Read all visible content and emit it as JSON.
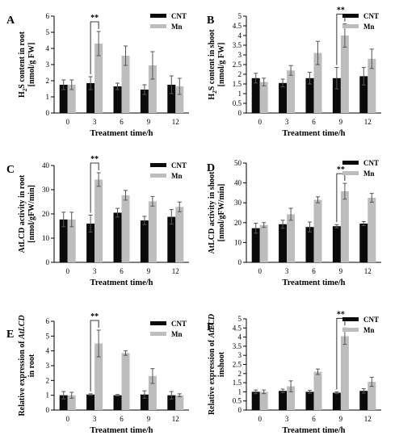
{
  "figure": {
    "shared": {
      "xlabel": "Treatment time/h",
      "legend": [
        "CNT",
        "Mn"
      ],
      "colors": {
        "CNT": "#0a0a0a",
        "Mn": "#bdbdbd",
        "axis": "#000000"
      },
      "significance": "**"
    }
  },
  "chart_data": [
    {
      "panel": "A",
      "type": "bar",
      "ylabel_parts": [
        "H",
        "2",
        "S content in root",
        "[nmol/g FW]"
      ],
      "xlabel": "Treatment time/h",
      "categories": [
        "0",
        "3",
        "6",
        "9",
        "12"
      ],
      "ylim": [
        0,
        6
      ],
      "yticks": [
        0,
        1,
        2,
        3,
        4,
        5,
        6
      ],
      "legend_position": "top-right",
      "series": [
        {
          "name": "CNT",
          "values": [
            1.75,
            1.85,
            1.65,
            1.45,
            1.75
          ],
          "errors": [
            0.3,
            0.4,
            0.2,
            0.3,
            0.55
          ]
        },
        {
          "name": "Mn",
          "values": [
            1.75,
            4.3,
            3.55,
            2.95,
            1.65
          ],
          "errors": [
            0.3,
            0.75,
            0.6,
            0.85,
            0.5
          ]
        }
      ],
      "annotations": [
        {
          "text": "**",
          "category": "3"
        }
      ]
    },
    {
      "panel": "B",
      "type": "bar",
      "ylabel_parts": [
        "H",
        "2",
        "S content in shoot",
        "[nmol/g FW]"
      ],
      "xlabel": "Treatment time/h",
      "categories": [
        "0",
        "3",
        "6",
        "9",
        "12"
      ],
      "ylim": [
        0,
        5
      ],
      "yticks": [
        0,
        0.5,
        1,
        1.5,
        2,
        2.5,
        3,
        3.5,
        4,
        4.5,
        5
      ],
      "legend_position": "top-right",
      "series": [
        {
          "name": "CNT",
          "values": [
            1.8,
            1.55,
            1.8,
            1.8,
            1.9
          ],
          "errors": [
            0.25,
            0.2,
            0.3,
            0.55,
            0.45
          ]
        },
        {
          "name": "Mn",
          "values": [
            1.6,
            2.2,
            3.1,
            4.0,
            2.8
          ],
          "errors": [
            0.2,
            0.25,
            0.6,
            0.6,
            0.5
          ]
        }
      ],
      "annotations": [
        {
          "text": "**",
          "category": "9"
        }
      ]
    },
    {
      "panel": "C",
      "type": "bar",
      "ylabel_parts": [
        "AtLCD activity in root",
        "[nmol/gFW/min]"
      ],
      "xlabel": "Treatment time/h",
      "categories": [
        "0",
        "3",
        "6",
        "9",
        "12"
      ],
      "ylim": [
        0,
        40
      ],
      "yticks": [
        0,
        10,
        20,
        30,
        40
      ],
      "legend_position": "top-right",
      "series": [
        {
          "name": "CNT",
          "values": [
            17.7,
            16.0,
            20.5,
            17.3,
            18.8
          ],
          "errors": [
            3.0,
            3.5,
            1.8,
            1.7,
            3.0
          ]
        },
        {
          "name": "Mn",
          "values": [
            17.7,
            34.2,
            27.7,
            25.2,
            22.9
          ],
          "errors": [
            3.0,
            2.8,
            2.0,
            2.0,
            2.0
          ]
        }
      ],
      "annotations": [
        {
          "text": "**",
          "category": "3"
        }
      ]
    },
    {
      "panel": "D",
      "type": "bar",
      "ylabel_parts": [
        "AtLCD activity in shoot",
        "[nmol/gFW/min]"
      ],
      "xlabel": "Treatment time/h",
      "categories": [
        "0",
        "3",
        "6",
        "9",
        "12"
      ],
      "ylim": [
        0,
        50
      ],
      "yticks": [
        0,
        10,
        20,
        30,
        40,
        50
      ],
      "legend_position": "top-right",
      "series": [
        {
          "name": "CNT",
          "values": [
            17.2,
            19.2,
            17.8,
            18.2,
            19.5
          ],
          "errors": [
            2.5,
            2.0,
            2.5,
            0.8,
            1.0
          ]
        },
        {
          "name": "Mn",
          "values": [
            18.8,
            24.2,
            31.5,
            35.8,
            32.5
          ],
          "errors": [
            1.2,
            3.0,
            1.5,
            4.0,
            2.2
          ]
        }
      ],
      "annotations": [
        {
          "text": "**",
          "category": "9"
        }
      ]
    },
    {
      "panel": "E",
      "type": "bar",
      "ylabel_parts": [
        "Relative expression of ",
        "AtLCD",
        "in root"
      ],
      "xlabel": "Treatment time/h",
      "categories": [
        "0",
        "3",
        "6",
        "9",
        "12"
      ],
      "ylim": [
        0,
        6
      ],
      "yticks": [
        0,
        1,
        2,
        3,
        4,
        5,
        6
      ],
      "legend_position": "top-right",
      "series": [
        {
          "name": "CNT",
          "values": [
            1.0,
            1.05,
            1.0,
            1.05,
            1.0
          ],
          "errors": [
            0.25,
            0.05,
            0.05,
            0.25,
            0.25
          ]
        },
        {
          "name": "Mn",
          "values": [
            1.0,
            4.5,
            3.85,
            2.3,
            1.0
          ],
          "errors": [
            0.2,
            0.9,
            0.15,
            0.5,
            0.1
          ]
        }
      ],
      "annotations": [
        {
          "text": "**",
          "category": "3"
        }
      ]
    },
    {
      "panel": "F",
      "type": "bar",
      "ylabel_parts": [
        "Relative expression of ",
        "AtLCD",
        "inshoot"
      ],
      "xlabel": "Treatment time/h",
      "categories": [
        "0",
        "3",
        "6",
        "9",
        "12"
      ],
      "ylim": [
        0,
        5
      ],
      "yticks": [
        0,
        0.5,
        1,
        1.5,
        2,
        2.5,
        3,
        3.5,
        4,
        4.5,
        5
      ],
      "legend_position": "top-right",
      "series": [
        {
          "name": "CNT",
          "values": [
            1.0,
            1.05,
            1.0,
            0.95,
            1.05
          ],
          "errors": [
            0.1,
            0.1,
            0.08,
            0.05,
            0.12
          ]
        },
        {
          "name": "Mn",
          "values": [
            1.0,
            1.3,
            2.1,
            4.05,
            1.55
          ],
          "errors": [
            0.1,
            0.3,
            0.15,
            0.45,
            0.25
          ]
        }
      ],
      "annotations": [
        {
          "text": "**",
          "category": "9"
        }
      ]
    }
  ]
}
